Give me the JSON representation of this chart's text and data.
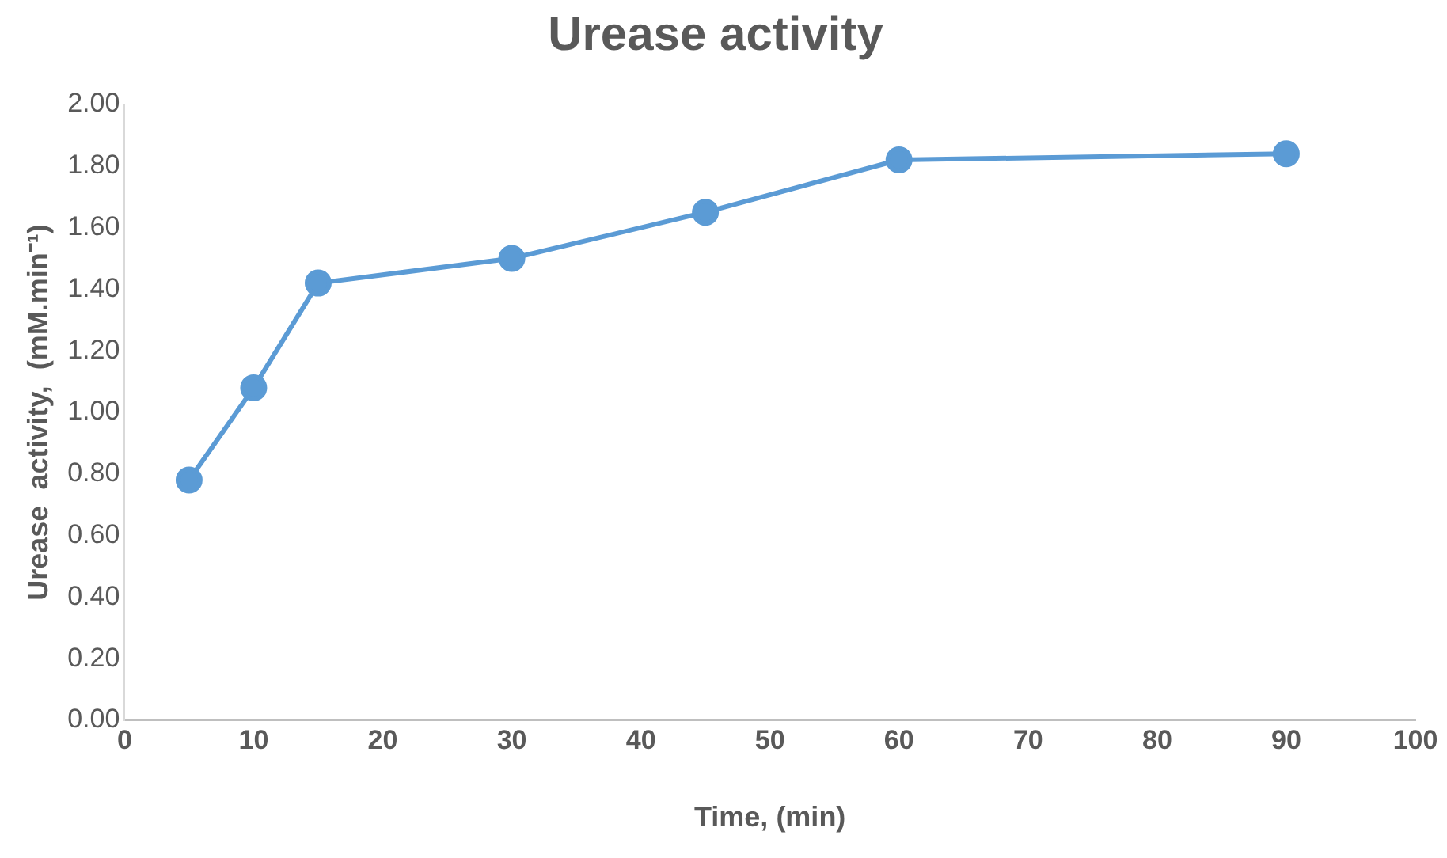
{
  "chart_data": {
    "type": "line",
    "title": "Urease activity",
    "xlabel": "Time, (min)",
    "ylabel": "Urease  activity,  (mM.min⁻¹)",
    "x": [
      5,
      10,
      15,
      30,
      45,
      60,
      90
    ],
    "series": [
      {
        "color": "#5b9bd5",
        "values": [
          0.78,
          1.08,
          1.42,
          1.5,
          1.65,
          1.82,
          1.84
        ]
      }
    ],
    "xlim": [
      0,
      100
    ],
    "xticks": [
      0,
      10,
      20,
      30,
      40,
      50,
      60,
      70,
      80,
      90,
      100
    ],
    "ylim": [
      0,
      2
    ],
    "yticks": [
      {
        "value": 0,
        "label": "0.00"
      },
      {
        "value": 0.2,
        "label": "0.20"
      },
      {
        "value": 0.4,
        "label": "0.40"
      },
      {
        "value": 0.6,
        "label": "0.60"
      },
      {
        "value": 0.8,
        "label": "0.80"
      },
      {
        "value": 1,
        "label": "1.00"
      },
      {
        "value": 1.2,
        "label": "1.20"
      },
      {
        "value": 1.4,
        "label": "1.40"
      },
      {
        "value": 1.6,
        "label": "1.60"
      },
      {
        "value": 1.8,
        "label": "1.80"
      },
      {
        "value": 2,
        "label": "2.00"
      }
    ],
    "grid": false,
    "legend": false,
    "marker": "circle",
    "line_style": "solid"
  }
}
